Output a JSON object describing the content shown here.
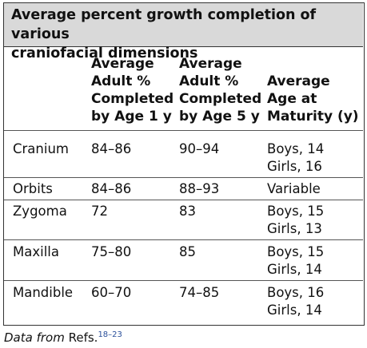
{
  "table": {
    "title_line1": "Average percent growth completion of various",
    "title_line2": "craniofacial dimensions",
    "headers": {
      "col1": [
        "Average",
        "Adult %",
        "Completed",
        "by Age 1 y"
      ],
      "col2": [
        "Average",
        "Adult %",
        "Completed",
        "by Age 5 y"
      ],
      "col3": [
        "Average",
        "Age at",
        "Maturity (y)"
      ]
    },
    "rows": [
      {
        "name": "Cranium",
        "age1": "84–86",
        "age5": "90–94",
        "maturity": [
          "Boys, 14",
          "Girls, 16"
        ]
      },
      {
        "name": "Orbits",
        "age1": "84–86",
        "age5": "88–93",
        "maturity": [
          "Variable"
        ]
      },
      {
        "name": "Zygoma",
        "age1": "72",
        "age5": "83",
        "maturity": [
          "Boys, 15",
          "Girls, 13"
        ]
      },
      {
        "name": "Maxilla",
        "age1": "75–80",
        "age5": "85",
        "maturity": [
          "Boys, 15",
          "Girls, 14"
        ]
      },
      {
        "name": "Mandible",
        "age1": "60–70",
        "age5": "74–85",
        "maturity": [
          "Boys, 16",
          "Girls, 14"
        ]
      }
    ]
  },
  "footnote": {
    "italic": "Data from",
    "text": " Refs.",
    "refs": "18–23"
  },
  "colors": {
    "title_bg": "#d9d9d9",
    "border": "#333333",
    "ref_link": "#2a4f9a"
  }
}
